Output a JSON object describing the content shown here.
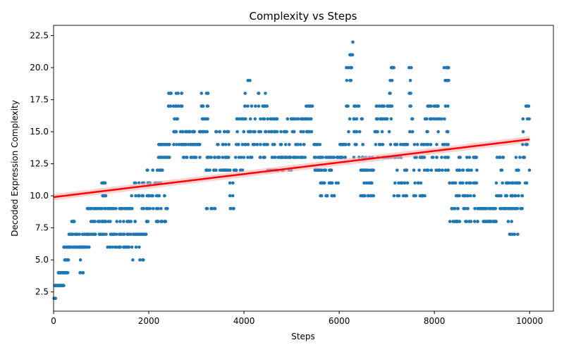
{
  "chart_data": {
    "type": "scatter",
    "title": "Complexity vs Steps",
    "xlabel": "Steps",
    "ylabel": "Decoded Expression Complexity",
    "xlim": [
      0,
      10500
    ],
    "ylim": [
      1.0,
      23.3
    ],
    "x_ticks": [
      0,
      2000,
      4000,
      6000,
      8000,
      10000
    ],
    "y_ticks": [
      2.5,
      5.0,
      7.5,
      10.0,
      12.5,
      15.0,
      17.5,
      20.0,
      22.5
    ],
    "x_tick_labels": [
      "0",
      "2000",
      "4000",
      "6000",
      "8000",
      "10000"
    ],
    "y_tick_labels": [
      "2.5",
      "5.0",
      "7.5",
      "10.0",
      "12.5",
      "15.0",
      "17.5",
      "20.0",
      "22.5"
    ],
    "grid": false,
    "legend": "none",
    "point_color": "#1f77b4",
    "trend_color": "#ff0000",
    "trend_band_color": "#ffb3b3",
    "trend_line": {
      "x": [
        0,
        10000
      ],
      "y": [
        9.9,
        14.4
      ]
    },
    "clusters": [
      {
        "x0": 0,
        "x1": 50,
        "levels": [
          2
        ]
      },
      {
        "x0": 0,
        "x1": 220,
        "levels": [
          3
        ]
      },
      {
        "x0": 100,
        "x1": 300,
        "levels": [
          4
        ]
      },
      {
        "x0": 200,
        "x1": 340,
        "levels": [
          5,
          6
        ]
      },
      {
        "x0": 300,
        "x1": 560,
        "levels": [
          6,
          7
        ]
      },
      {
        "x0": 380,
        "x1": 440,
        "levels": [
          8
        ]
      },
      {
        "x0": 540,
        "x1": 640,
        "levels": [
          4,
          5,
          6
        ]
      },
      {
        "x0": 600,
        "x1": 780,
        "levels": [
          6,
          7
        ]
      },
      {
        "x0": 700,
        "x1": 1100,
        "levels": [
          7,
          8,
          9
        ]
      },
      {
        "x0": 1000,
        "x1": 1100,
        "levels": [
          10,
          11
        ]
      },
      {
        "x0": 1100,
        "x1": 1600,
        "levels": [
          6,
          7,
          8,
          9
        ]
      },
      {
        "x0": 1550,
        "x1": 1900,
        "levels": [
          5,
          6,
          7,
          8,
          9,
          10,
          11
        ]
      },
      {
        "x0": 1700,
        "x1": 1950,
        "levels": [
          7
        ]
      },
      {
        "x0": 1950,
        "x1": 2400,
        "levels": [
          8,
          9,
          10,
          11,
          12
        ]
      },
      {
        "x0": 2200,
        "x1": 2450,
        "levels": [
          13,
          14
        ]
      },
      {
        "x0": 2400,
        "x1": 2700,
        "levels": [
          14,
          15,
          16,
          17,
          18
        ]
      },
      {
        "x0": 2700,
        "x1": 3100,
        "levels": [
          13,
          14,
          15
        ]
      },
      {
        "x0": 3050,
        "x1": 3250,
        "levels": [
          15,
          16,
          17,
          18
        ]
      },
      {
        "x0": 3200,
        "x1": 3400,
        "levels": [
          9,
          12,
          13
        ]
      },
      {
        "x0": 3400,
        "x1": 3700,
        "levels": [
          12,
          13,
          14,
          15
        ]
      },
      {
        "x0": 3700,
        "x1": 3800,
        "levels": [
          9,
          10,
          11,
          12
        ]
      },
      {
        "x0": 3800,
        "x1": 4000,
        "levels": [
          12,
          13,
          14,
          15,
          16
        ]
      },
      {
        "x0": 4000,
        "x1": 4200,
        "levels": [
          13,
          14,
          15,
          16,
          17,
          18,
          19
        ]
      },
      {
        "x0": 4200,
        "x1": 4500,
        "levels": [
          13,
          14,
          15,
          16,
          17,
          18
        ]
      },
      {
        "x0": 4500,
        "x1": 5000,
        "levels": [
          12,
          13,
          14,
          15,
          16
        ]
      },
      {
        "x0": 5000,
        "x1": 5300,
        "levels": [
          13,
          14,
          15,
          16
        ]
      },
      {
        "x0": 5300,
        "x1": 5450,
        "levels": [
          15,
          16,
          17
        ]
      },
      {
        "x0": 5450,
        "x1": 5600,
        "levels": [
          12,
          13,
          14
        ]
      },
      {
        "x0": 5600,
        "x1": 6000,
        "levels": [
          10,
          11,
          12,
          13
        ]
      },
      {
        "x0": 6000,
        "x1": 6150,
        "levels": [
          13,
          14
        ]
      },
      {
        "x0": 6150,
        "x1": 6250,
        "levels": [
          14,
          15,
          16,
          17,
          18,
          19,
          20
        ]
      },
      {
        "x0": 6220,
        "x1": 6300,
        "levels": [
          20,
          21,
          22
        ]
      },
      {
        "x0": 6300,
        "x1": 6500,
        "levels": [
          13,
          14,
          15,
          16,
          17
        ]
      },
      {
        "x0": 6450,
        "x1": 6750,
        "levels": [
          10,
          11,
          12,
          13
        ]
      },
      {
        "x0": 6750,
        "x1": 7100,
        "levels": [
          13,
          14,
          15,
          16,
          17
        ]
      },
      {
        "x0": 7050,
        "x1": 7150,
        "levels": [
          17,
          18,
          19,
          20
        ]
      },
      {
        "x0": 7150,
        "x1": 7450,
        "levels": [
          10,
          11,
          12,
          13,
          14
        ]
      },
      {
        "x0": 7450,
        "x1": 7550,
        "levels": [
          15,
          16,
          17,
          18,
          19,
          20
        ]
      },
      {
        "x0": 7550,
        "x1": 7800,
        "levels": [
          10,
          11,
          12,
          13,
          14
        ]
      },
      {
        "x0": 7800,
        "x1": 8300,
        "levels": [
          12,
          13,
          14,
          15,
          16,
          17
        ]
      },
      {
        "x0": 8200,
        "x1": 8300,
        "levels": [
          19,
          20
        ]
      },
      {
        "x0": 8300,
        "x1": 8500,
        "levels": [
          8,
          9,
          10,
          11,
          12
        ]
      },
      {
        "x0": 8500,
        "x1": 8900,
        "levels": [
          8,
          9,
          10,
          11,
          12,
          13
        ]
      },
      {
        "x0": 8900,
        "x1": 9300,
        "levels": [
          8,
          9
        ]
      },
      {
        "x0": 9300,
        "x1": 9450,
        "levels": [
          9,
          10,
          11,
          12,
          13
        ]
      },
      {
        "x0": 9450,
        "x1": 9750,
        "levels": [
          7,
          8,
          9,
          10,
          11
        ]
      },
      {
        "x0": 9700,
        "x1": 9850,
        "levels": [
          9,
          10,
          11,
          12,
          13,
          14
        ]
      },
      {
        "x0": 9850,
        "x1": 10000,
        "levels": [
          11,
          12,
          13,
          14,
          15,
          16,
          17
        ]
      }
    ]
  }
}
